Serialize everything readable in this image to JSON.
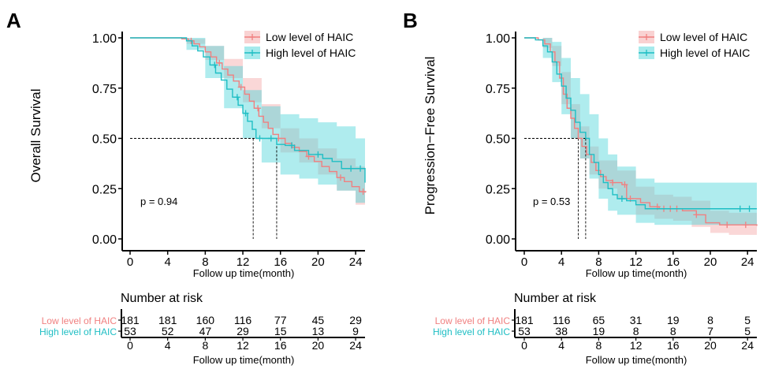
{
  "figure": {
    "panels": [
      {
        "letter": "A",
        "ylabel": "Overall Survival",
        "xlabel": "Follow up time(month)",
        "pvalue": "p = 0.94",
        "risk_title": "Number at risk",
        "risk_xlabel": "Follow up time(month)"
      },
      {
        "letter": "B",
        "ylabel": "Progression−Free Survival",
        "xlabel": "Follow up time(month)",
        "pvalue": "p = 0.53",
        "risk_title": "Number at risk",
        "risk_xlabel": "Follow up time(month)"
      }
    ]
  },
  "chart_data": [
    {
      "type": "line",
      "subtype": "kaplan-meier",
      "panel": "A",
      "ylabel": "Overall Survival",
      "xlabel": "Follow up time(month)",
      "xlim": [
        0,
        25
      ],
      "ylim": [
        0,
        1
      ],
      "x_ticks": [
        0,
        4,
        8,
        12,
        16,
        20,
        24
      ],
      "y_ticks": [
        0,
        0.25,
        0.5,
        0.75,
        1
      ],
      "y_tick_labels": [
        "0.00",
        "0.25",
        "0.50",
        "0.75",
        "1.00"
      ],
      "legend_position": "top-right",
      "annotation": "p = 0.94",
      "median_lines": [
        13.1,
        15.6
      ],
      "series": [
        {
          "name": "Low level of HAIC",
          "color": "#F08080",
          "band_color": "#F4A6A6",
          "steps": [
            [
              0,
              1.0
            ],
            [
              5.5,
              0.995
            ],
            [
              6.2,
              0.985
            ],
            [
              6.8,
              0.97
            ],
            [
              7.4,
              0.955
            ],
            [
              8.0,
              0.93
            ],
            [
              8.6,
              0.905
            ],
            [
              9.2,
              0.875
            ],
            [
              9.8,
              0.845
            ],
            [
              10.4,
              0.815
            ],
            [
              11.0,
              0.785
            ],
            [
              11.6,
              0.755
            ],
            [
              12.2,
              0.72
            ],
            [
              12.7,
              0.685
            ],
            [
              13.2,
              0.65
            ],
            [
              13.7,
              0.61
            ],
            [
              14.2,
              0.58
            ],
            [
              14.7,
              0.55
            ],
            [
              15.2,
              0.52
            ],
            [
              15.8,
              0.5
            ],
            [
              16.5,
              0.475
            ],
            [
              17.2,
              0.455
            ],
            [
              18.0,
              0.435
            ],
            [
              18.8,
              0.41
            ],
            [
              19.6,
              0.385
            ],
            [
              20.4,
              0.36
            ],
            [
              21.2,
              0.335
            ],
            [
              22.0,
              0.305
            ],
            [
              22.8,
              0.285
            ],
            [
              23.6,
              0.26
            ],
            [
              24.4,
              0.235
            ],
            [
              25,
              0.23
            ]
          ],
          "band": [
            [
              0,
              1.0,
              1.0
            ],
            [
              6.0,
              0.995,
              0.97
            ],
            [
              8.0,
              0.96,
              0.89
            ],
            [
              10.0,
              0.895,
              0.8
            ],
            [
              12.0,
              0.8,
              0.68
            ],
            [
              14.0,
              0.67,
              0.55
            ],
            [
              16.0,
              0.55,
              0.43
            ],
            [
              18.0,
              0.5,
              0.38
            ],
            [
              20.0,
              0.45,
              0.32
            ],
            [
              22.0,
              0.4,
              0.24
            ],
            [
              24.0,
              0.36,
              0.17
            ],
            [
              25,
              0.35,
              0.16
            ]
          ],
          "censor_times": [
            6.5,
            9.5,
            11.8,
            13.6,
            15.8,
            17.5,
            19.0,
            22.4,
            24.8
          ]
        },
        {
          "name": "High level of HAIC",
          "color": "#1FBEC4",
          "band_color": "#4DD5DA",
          "steps": [
            [
              0,
              1.0
            ],
            [
              6.0,
              0.985
            ],
            [
              6.6,
              0.96
            ],
            [
              7.2,
              0.935
            ],
            [
              7.8,
              0.905
            ],
            [
              8.5,
              0.865
            ],
            [
              9.1,
              0.825
            ],
            [
              9.7,
              0.79
            ],
            [
              10.3,
              0.745
            ],
            [
              10.9,
              0.705
            ],
            [
              11.5,
              0.665
            ],
            [
              12.0,
              0.625
            ],
            [
              12.5,
              0.585
            ],
            [
              13.0,
              0.545
            ],
            [
              13.4,
              0.5
            ],
            [
              14.5,
              0.5
            ],
            [
              15.6,
              0.47
            ],
            [
              16.5,
              0.465
            ],
            [
              17.5,
              0.44
            ],
            [
              19.0,
              0.42
            ],
            [
              20.5,
              0.4
            ],
            [
              21.5,
              0.385
            ],
            [
              22.5,
              0.35
            ],
            [
              25,
              0.28
            ]
          ],
          "band": [
            [
              0,
              1.0,
              1.0
            ],
            [
              6.0,
              1.0,
              0.94
            ],
            [
              8.0,
              0.96,
              0.8
            ],
            [
              10.0,
              0.86,
              0.65
            ],
            [
              12.0,
              0.74,
              0.5
            ],
            [
              14.0,
              0.66,
              0.38
            ],
            [
              16.0,
              0.62,
              0.32
            ],
            [
              18.0,
              0.6,
              0.3
            ],
            [
              20.0,
              0.58,
              0.27
            ],
            [
              22.0,
              0.56,
              0.24
            ],
            [
              24.0,
              0.5,
              0.18
            ],
            [
              25,
              0.48,
              0.17
            ]
          ],
          "censor_times": [
            9.0,
            11.4,
            12.3,
            13.8,
            15.0,
            17.2,
            20.0,
            23.5,
            24.5
          ]
        }
      ],
      "risk_table": {
        "title": "Number at risk",
        "xlabel": "Follow up time(month)",
        "times": [
          0,
          4,
          8,
          12,
          16,
          20,
          24
        ],
        "rows": [
          {
            "name": "Low level of HAIC",
            "color": "#F08080",
            "counts": [
              181,
              181,
              160,
              116,
              77,
              45,
              29
            ]
          },
          {
            "name": "High level of HAIC",
            "color": "#1FBEC4",
            "counts": [
              53,
              52,
              47,
              29,
              15,
              13,
              9
            ]
          }
        ]
      }
    },
    {
      "type": "line",
      "subtype": "kaplan-meier",
      "panel": "B",
      "ylabel": "Progression−Free Survival",
      "xlabel": "Follow up time(month)",
      "xlim": [
        0,
        25
      ],
      "ylim": [
        0,
        1
      ],
      "x_ticks": [
        0,
        4,
        8,
        12,
        16,
        20,
        24
      ],
      "y_ticks": [
        0,
        0.25,
        0.5,
        0.75,
        1
      ],
      "y_tick_labels": [
        "0.00",
        "0.25",
        "0.50",
        "0.75",
        "1.00"
      ],
      "legend_position": "top-right",
      "annotation": "p = 0.53",
      "median_lines": [
        5.8,
        6.6
      ],
      "series": [
        {
          "name": "Low level of HAIC",
          "color": "#F08080",
          "band_color": "#F4A6A6",
          "steps": [
            [
              0,
              1.0
            ],
            [
              1.5,
              0.99
            ],
            [
              2.2,
              0.97
            ],
            [
              2.8,
              0.93
            ],
            [
              3.3,
              0.88
            ],
            [
              3.8,
              0.8
            ],
            [
              4.2,
              0.72
            ],
            [
              4.6,
              0.65
            ],
            [
              5.0,
              0.6
            ],
            [
              5.4,
              0.55
            ],
            [
              5.8,
              0.5
            ],
            [
              6.2,
              0.46
            ],
            [
              6.7,
              0.42
            ],
            [
              7.2,
              0.38
            ],
            [
              7.7,
              0.34
            ],
            [
              8.2,
              0.31
            ],
            [
              8.8,
              0.29
            ],
            [
              9.5,
              0.28
            ],
            [
              10.5,
              0.27
            ],
            [
              11.0,
              0.2
            ],
            [
              12.5,
              0.18
            ],
            [
              13.5,
              0.16
            ],
            [
              14.5,
              0.15
            ],
            [
              17.0,
              0.14
            ],
            [
              18.5,
              0.12
            ],
            [
              19.5,
              0.08
            ],
            [
              21.0,
              0.07
            ],
            [
              25,
              0.065
            ]
          ],
          "band": [
            [
              0,
              1.0,
              1.0
            ],
            [
              2.0,
              1.0,
              0.95
            ],
            [
              3.0,
              0.96,
              0.86
            ],
            [
              4.0,
              0.83,
              0.67
            ],
            [
              5.0,
              0.67,
              0.5
            ],
            [
              6.0,
              0.56,
              0.4
            ],
            [
              7.0,
              0.46,
              0.32
            ],
            [
              8.0,
              0.39,
              0.25
            ],
            [
              10.0,
              0.34,
              0.2
            ],
            [
              12.0,
              0.26,
              0.12
            ],
            [
              14.0,
              0.22,
              0.1
            ],
            [
              16.0,
              0.21,
              0.09
            ],
            [
              18.0,
              0.19,
              0.06
            ],
            [
              20.0,
              0.14,
              0.03
            ],
            [
              22.0,
              0.13,
              0.02
            ],
            [
              25,
              0.12,
              0.02
            ]
          ],
          "censor_times": [
            9.5,
            10.8,
            11.4,
            14.3,
            15.0,
            15.7,
            16.4,
            18.5,
            21.8,
            23.8
          ]
        },
        {
          "name": "High level of HAIC",
          "color": "#1FBEC4",
          "band_color": "#4DD5DA",
          "steps": [
            [
              0,
              1.0
            ],
            [
              1.2,
              0.99
            ],
            [
              2.0,
              0.96
            ],
            [
              2.5,
              0.93
            ],
            [
              3.0,
              0.88
            ],
            [
              3.5,
              0.82
            ],
            [
              4.0,
              0.76
            ],
            [
              4.5,
              0.7
            ],
            [
              5.0,
              0.64
            ],
            [
              5.5,
              0.58
            ],
            [
              6.0,
              0.53
            ],
            [
              6.6,
              0.5
            ],
            [
              7.0,
              0.42
            ],
            [
              7.5,
              0.38
            ],
            [
              8.0,
              0.32
            ],
            [
              8.5,
              0.28
            ],
            [
              9.0,
              0.25
            ],
            [
              9.5,
              0.22
            ],
            [
              10.0,
              0.2
            ],
            [
              11.0,
              0.19
            ],
            [
              12.0,
              0.17
            ],
            [
              13.0,
              0.15
            ],
            [
              25,
              0.15
            ]
          ],
          "band": [
            [
              0,
              1.0,
              1.0
            ],
            [
              2.0,
              1.0,
              0.9
            ],
            [
              3.0,
              0.98,
              0.78
            ],
            [
              4.0,
              0.9,
              0.62
            ],
            [
              5.0,
              0.8,
              0.5
            ],
            [
              6.0,
              0.72,
              0.4
            ],
            [
              7.0,
              0.62,
              0.3
            ],
            [
              8.0,
              0.5,
              0.2
            ],
            [
              9.0,
              0.42,
              0.14
            ],
            [
              10.0,
              0.36,
              0.12
            ],
            [
              12.0,
              0.3,
              0.08
            ],
            [
              14.0,
              0.28,
              0.07
            ],
            [
              18.0,
              0.28,
              0.07
            ],
            [
              25,
              0.28,
              0.07
            ]
          ],
          "censor_times": [
            10.5,
            23.2,
            24.2
          ]
        }
      ],
      "risk_table": {
        "title": "Number at risk",
        "xlabel": "Follow up time(month)",
        "times": [
          0,
          4,
          8,
          12,
          16,
          20,
          24
        ],
        "rows": [
          {
            "name": "Low level of HAIC",
            "color": "#F08080",
            "counts": [
              181,
              116,
              65,
              31,
              19,
              8,
              5
            ]
          },
          {
            "name": "High level of HAIC",
            "color": "#1FBEC4",
            "counts": [
              53,
              38,
              19,
              8,
              8,
              7,
              5
            ]
          }
        ]
      }
    }
  ]
}
